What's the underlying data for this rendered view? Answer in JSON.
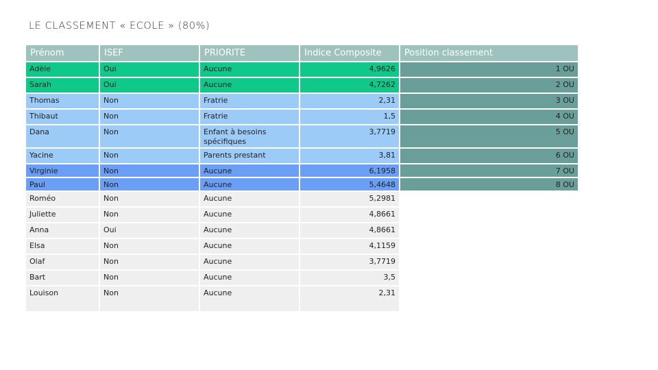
{
  "title": "LE CLASSEMENT « ECOLE » (80%)",
  "headers": {
    "prenom": "Prénom",
    "isef": "ISEF",
    "priorite": "PRIORITE",
    "indice": "Indice Composite",
    "position": "Position classement"
  },
  "rows": [
    {
      "prenom": "Adèle",
      "isef": "Oui",
      "priorite": "Aucune",
      "indice": "4,9626",
      "position": "1 OU"
    },
    {
      "prenom": "Sarah",
      "isef": "Oui",
      "priorite": "Aucune",
      "indice": "4,7262",
      "position": "2 OU"
    },
    {
      "prenom": "Thomas",
      "isef": "Non",
      "priorite": "Fratrie",
      "indice": "2,31",
      "position": "3 OU"
    },
    {
      "prenom": "Thibaut",
      "isef": "Non",
      "priorite": "Fratrie",
      "indice": "1,5",
      "position": "4 OU"
    },
    {
      "prenom": "Dana",
      "isef": "Non",
      "priorite": "Enfant à besoins spécifiques",
      "indice": "3,7719",
      "position": "5 OU"
    },
    {
      "prenom": "Yacine",
      "isef": "Non",
      "priorite": "Parents prestant",
      "indice": "3,81",
      "position": "6 OU"
    },
    {
      "prenom": "Virginie",
      "isef": "Non",
      "priorite": "Aucune",
      "indice": "6,1958",
      "position": "7 OU"
    },
    {
      "prenom": "Paul",
      "isef": "Non",
      "priorite": "Aucune",
      "indice": "5,4648",
      "position": "8 OU"
    },
    {
      "prenom": "Roméo",
      "isef": "Non",
      "priorite": "Aucune",
      "indice": "5,2981",
      "position": ""
    },
    {
      "prenom": "Juliette",
      "isef": "Non",
      "priorite": "Aucune",
      "indice": "4,8661",
      "position": ""
    },
    {
      "prenom": "Anna",
      "isef": "Oui",
      "priorite": "Aucune",
      "indice": "4,8661",
      "position": ""
    },
    {
      "prenom": "Elsa",
      "isef": "Non",
      "priorite": "Aucune",
      "indice": "4,1159",
      "position": ""
    },
    {
      "prenom": "Olaf",
      "isef": "Non",
      "priorite": "Aucune",
      "indice": "3,7719",
      "position": ""
    },
    {
      "prenom": "Bart",
      "isef": "Non",
      "priorite": "Aucune",
      "indice": "3,5",
      "position": ""
    },
    {
      "prenom": "Louison",
      "isef": "Non",
      "priorite": "Aucune",
      "indice": "2,31",
      "position": ""
    }
  ],
  "colors": {
    "header": "#9ec2bd",
    "green": "#10c88a",
    "light_blue": "#9ccbf8",
    "dark_blue": "#6b9ef5",
    "grey": "#efefef",
    "position": "#6a9e99"
  }
}
